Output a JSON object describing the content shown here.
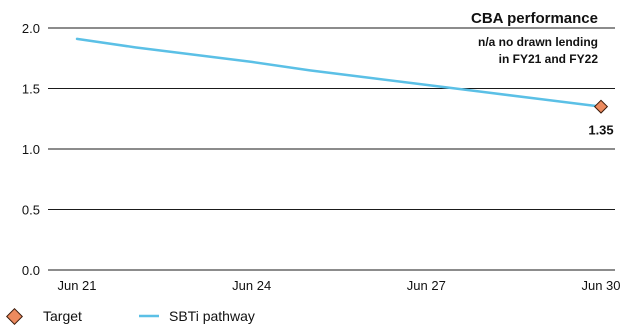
{
  "chart_data": {
    "type": "line",
    "categories": [
      "Jun 21",
      "Jun 24",
      "Jun 27",
      "Jun 30"
    ],
    "x": [
      2021,
      2022,
      2023,
      2024,
      2025,
      2026,
      2027,
      2028,
      2029,
      2030
    ],
    "ylim": [
      0.0,
      2.0
    ],
    "y_ticks": [
      "0.0",
      "0.5",
      "1.0",
      "1.5",
      "2.0"
    ],
    "grid": true,
    "series": [
      {
        "name": "SBTi pathway",
        "color": "#5bc0e6",
        "values": [
          1.91,
          1.84,
          1.78,
          1.72,
          1.65,
          1.59,
          1.53,
          1.47,
          1.41,
          1.35
        ]
      }
    ],
    "target": {
      "name": "Target",
      "color": "#ec8a5e",
      "x": 2030,
      "value": 1.35,
      "label": "1.35"
    },
    "annotation": {
      "title": "CBA performance",
      "lines": [
        "n/a no drawn lending",
        "in FY21 and FY22"
      ]
    },
    "legend": [
      {
        "name": "Target",
        "marker": "diamond",
        "color": "#ec8a5e"
      },
      {
        "name": "SBTi pathway",
        "marker": "line",
        "color": "#5bc0e6"
      }
    ]
  }
}
